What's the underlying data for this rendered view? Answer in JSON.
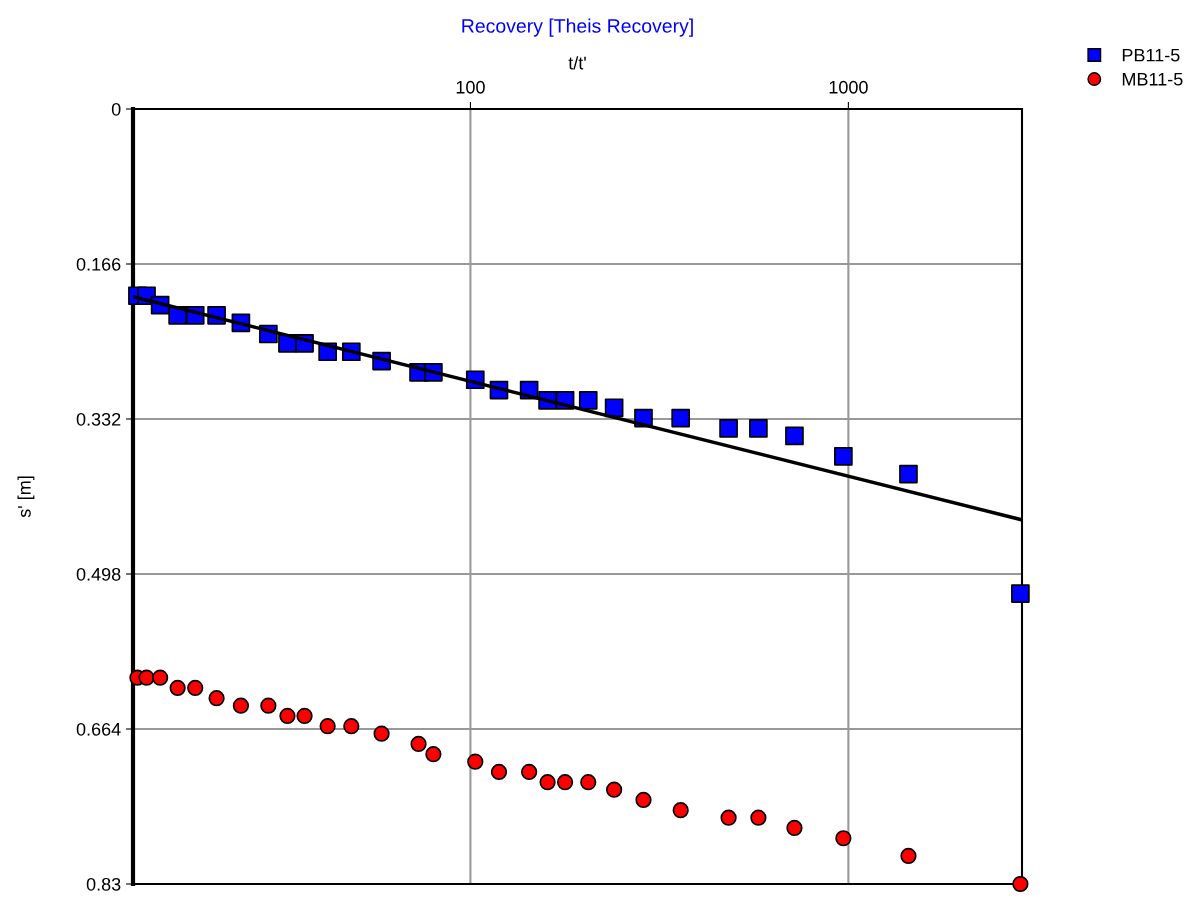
{
  "chart_data": {
    "type": "scatter",
    "title": "Recovery [Theis Recovery]",
    "xlabel": "t/t'",
    "ylabel": "s' [m]",
    "log": "x",
    "grid": true,
    "legend": "top right",
    "xlim": [
      12.8,
      2880
    ],
    "xticks": [
      100,
      1000
    ],
    "ylim": [
      0.83,
      0
    ],
    "yticks": [
      0,
      0.166,
      0.332,
      0.498,
      0.664,
      0.83
    ],
    "x": [
      13.15,
      13.9,
      15.1,
      16.8,
      18.7,
      21.3,
      24.7,
      29.2,
      32.8,
      36.4,
      41.9,
      48.4,
      58.2,
      72.9,
      79.8,
      103,
      119,
      143,
      160,
      178,
      205,
      240,
      287,
      360,
      482,
      578,
      720,
      970,
      1442,
      2852
    ],
    "series": [
      {
        "name": "PB11-5",
        "color": "#0000ff",
        "marker": "square",
        "values": [
          0.2,
          0.2,
          0.21,
          0.221,
          0.221,
          0.221,
          0.229,
          0.241,
          0.251,
          0.251,
          0.26,
          0.26,
          0.27,
          0.282,
          0.282,
          0.29,
          0.301,
          0.301,
          0.312,
          0.312,
          0.312,
          0.32,
          0.331,
          0.331,
          0.342,
          0.342,
          0.35,
          0.372,
          0.391,
          0.519
        ]
      },
      {
        "name": "MB11-5",
        "color": "#ff0000",
        "marker": "circle",
        "values": [
          0.609,
          0.609,
          0.609,
          0.62,
          0.62,
          0.631,
          0.639,
          0.639,
          0.65,
          0.65,
          0.661,
          0.661,
          0.669,
          0.68,
          0.691,
          0.699,
          0.71,
          0.71,
          0.721,
          0.721,
          0.721,
          0.729,
          0.74,
          0.751,
          0.759,
          0.759,
          0.77,
          0.781,
          0.8,
          0.83
        ]
      },
      {
        "type": "line",
        "color": "#000000",
        "marker": "none",
        "line_style": "solid",
        "x": [
          12.8,
          2880
        ],
        "values": [
          0.201,
          0.44
        ]
      }
    ]
  }
}
